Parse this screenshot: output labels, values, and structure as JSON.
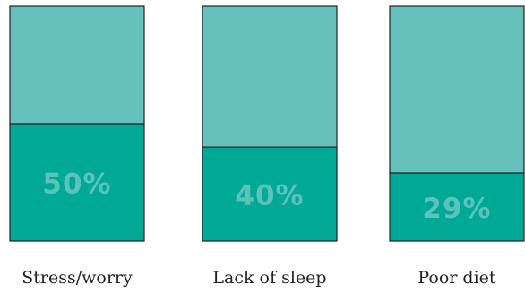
{
  "chart_data": {
    "type": "bar",
    "stacked_to_full": true,
    "categories": [
      "Stress/worry",
      "Lack of sleep",
      "Poor diet"
    ],
    "values": [
      50,
      40,
      29
    ],
    "value_labels": [
      "50%",
      "40%",
      "29%"
    ],
    "ylim": [
      0,
      100
    ],
    "grid": false,
    "colors": {
      "filled": "#00a896",
      "remainder": "#66c1bc",
      "outline": "#222222",
      "label": "#5cc3bc",
      "category_text": "#222222"
    }
  }
}
